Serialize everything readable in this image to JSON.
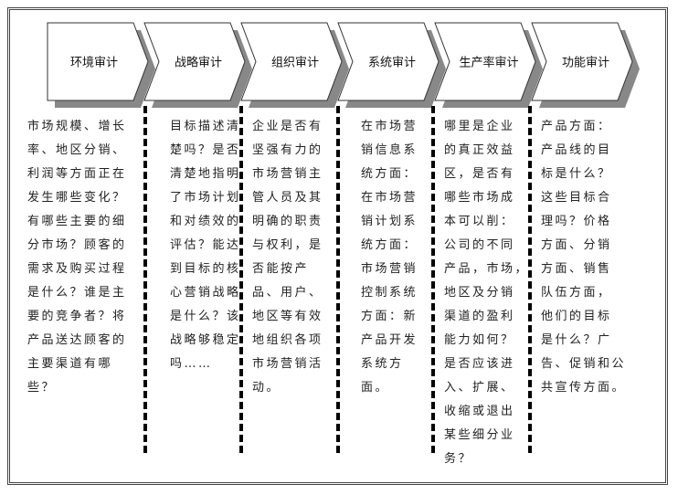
{
  "stages": [
    {
      "title": "环境审计",
      "lines": [
        "市场规模、增长",
        "率、地区分销、",
        "利润等方面正在",
        "发生哪些变化？",
        "有哪些主要的细",
        "分市场？顾客的",
        "需求及购买过程",
        "是什么？谁是主",
        "要的竞争者？将",
        "产品送达顾客的",
        "主要渠道有哪",
        "些？"
      ]
    },
    {
      "title": "战略审计",
      "lines": [
        "目标描述清",
        "楚吗？是否",
        "清楚地指明",
        "了市场计划",
        "和对绩效的",
        "评估？能达",
        "到目标的核",
        "心营销战略",
        "是什么？该",
        "战略够稳定",
        "吗……"
      ]
    },
    {
      "title": "组织审计",
      "lines": [
        "企业是否有",
        "坚强有力的",
        "市场营销主",
        "管人员及其",
        "明确的职责",
        "与权利，是",
        "否能按产",
        "品、用户、",
        "地区等有效",
        "地组织各项",
        "市场营销活",
        "动。"
      ]
    },
    {
      "title": "系统审计",
      "lines": [
        "在市场营",
        "销信息系",
        "统方面：",
        "在市场营",
        "销计划系",
        "统方面：",
        "市场营销",
        "控制系统",
        "方面：新",
        "产品开发",
        "系统方",
        "面。"
      ]
    },
    {
      "title": "生产率审计",
      "lines": [
        "哪里是企业",
        "的真正效益",
        "区，是否有",
        "哪些市场成",
        "本可以削：",
        "公司的不同",
        "产品，市场，",
        "地区及分销",
        "渠道的盈利",
        "能力如何？",
        "是否应该进",
        "入、扩展、",
        "收缩或退出",
        "某些细分业",
        "务？"
      ]
    },
    {
      "title": "功能审计",
      "lines": [
        "产品方面：",
        "产品线的目",
        "标是什么？",
        "这些目标合",
        "理吗？价格",
        "方面、分销",
        "方面、销售",
        "队伍方面，",
        "他们的目标",
        "是什么？广",
        "告、促销和公",
        "共宣传方面。"
      ]
    }
  ]
}
